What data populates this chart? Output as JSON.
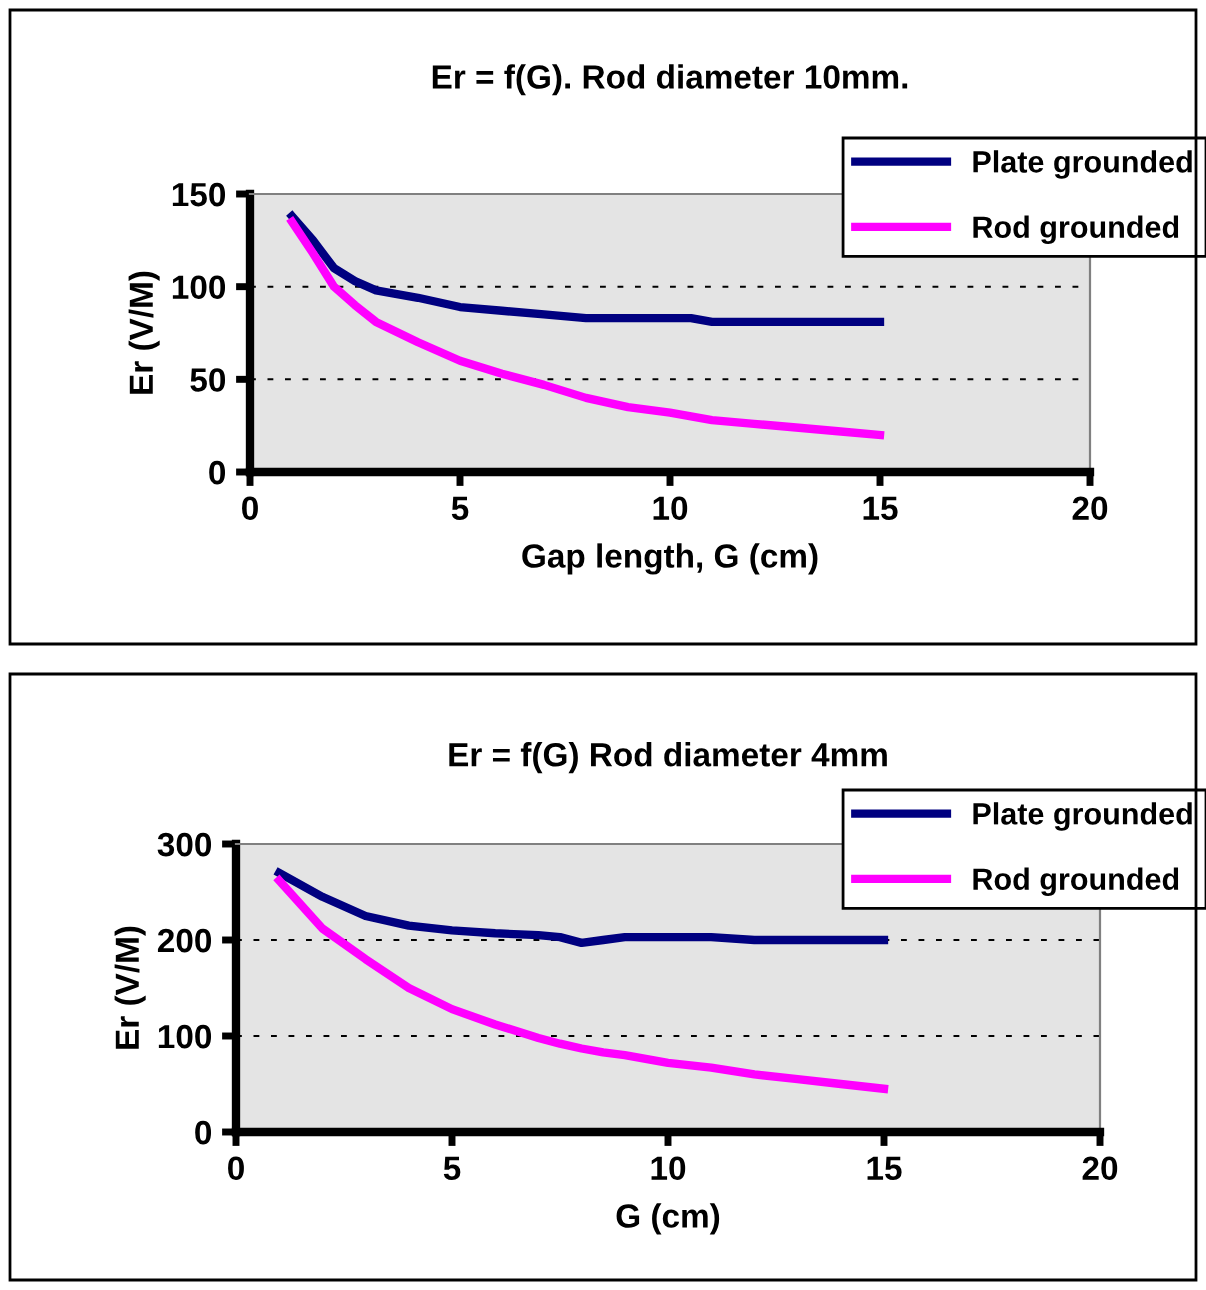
{
  "chart_data": [
    {
      "type": "line",
      "title": "Er = f(G). Rod diameter 10mm.",
      "xlabel": "Gap length, G (cm)",
      "ylabel": "Er (V/M)",
      "x": [
        1,
        1.5,
        2,
        2.5,
        3,
        4,
        5,
        6,
        7,
        8,
        9,
        10,
        10.5,
        11,
        12,
        13,
        14,
        15
      ],
      "series": [
        {
          "name": "Plate grounded",
          "color": "#000080",
          "values": [
            138,
            125,
            110,
            103,
            98,
            94,
            89,
            87,
            85,
            83,
            83,
            83,
            83,
            81,
            81,
            81,
            81,
            81
          ]
        },
        {
          "name": "Rod grounded",
          "color": "#ff00ff",
          "values": [
            135,
            118,
            100,
            90,
            81,
            70,
            60,
            53,
            47,
            40,
            35,
            32,
            30,
            28,
            26,
            24,
            22,
            20
          ]
        }
      ],
      "xlim": [
        0,
        20
      ],
      "xticks": [
        0,
        5,
        10,
        15,
        20
      ],
      "ylim": [
        0,
        150
      ],
      "yticks": [
        0,
        50,
        100,
        150
      ],
      "grid": "y",
      "legend": "top right",
      "marker": "none",
      "line_style": "solid"
    },
    {
      "type": "line",
      "title": "Er = f(G) Rod diameter 4mm",
      "xlabel": "G (cm)",
      "ylabel": "Er (V/M)",
      "x": [
        1,
        2,
        3,
        4,
        5,
        6,
        7,
        7.5,
        8,
        8.5,
        9,
        10,
        11,
        12,
        13,
        14,
        15
      ],
      "series": [
        {
          "name": "Plate grounded",
          "color": "#000080",
          "values": [
            270,
            245,
            225,
            215,
            210,
            207,
            205,
            203,
            197,
            200,
            203,
            203,
            203,
            200,
            200,
            200,
            200
          ]
        },
        {
          "name": "Rod grounded",
          "color": "#ff00ff",
          "values": [
            262,
            212,
            180,
            150,
            128,
            112,
            98,
            92,
            87,
            83,
            80,
            72,
            67,
            60,
            55,
            50,
            45
          ]
        }
      ],
      "xlim": [
        0,
        20
      ],
      "xticks": [
        0,
        5,
        10,
        15,
        20
      ],
      "ylim": [
        0,
        300
      ],
      "yticks": [
        0,
        100,
        200,
        300
      ],
      "grid": "y",
      "legend": "top right",
      "marker": "none",
      "line_style": "solid"
    }
  ]
}
